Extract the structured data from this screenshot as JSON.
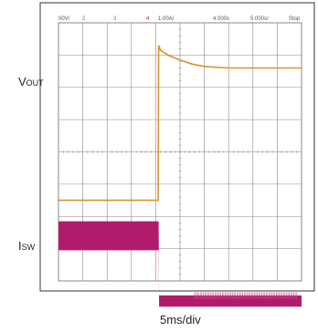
{
  "labels": {
    "vout_main": "V",
    "vout_sub": "OUT",
    "isw_main": "I",
    "isw_sub": "SW",
    "timebase": "5ms/div"
  },
  "scope_header": {
    "ch1_scale": "00V/",
    "ch2_num": "2",
    "ch3_num": "3",
    "ch4_num": "4",
    "ch4_scale": "1.00A/",
    "trigger_time": "4.000s",
    "timebase_setting": "5.000s/",
    "run_state": "Stop"
  },
  "colors": {
    "ch1": "#d9922f",
    "ch2": "#2a9a2a",
    "ch3": "#5b79c8",
    "ch4": "#b01c6b",
    "grid": "#8a8a8a",
    "frame": "#333333"
  },
  "chart_data": {
    "type": "line",
    "xlabel": "5ms/div",
    "x_divisions": 10,
    "y_divisions": 8,
    "series": [
      {
        "name": "VOUT",
        "channel": 1,
        "x_div": [
          0,
          4.1,
          4.12,
          4.2,
          4.5,
          5.0,
          5.5,
          6.0,
          6.5,
          7.0,
          8.0,
          10.0
        ],
        "y_div": [
          2.5,
          2.5,
          7.3,
          7.15,
          7.0,
          6.85,
          6.72,
          6.65,
          6.62,
          6.6,
          6.6,
          6.6
        ]
      },
      {
        "name": "ISW",
        "channel": 4,
        "x_div": [
          0,
          4.12,
          4.14,
          10.0
        ],
        "y_div_top": [
          1.85,
          1.85,
          -0.45,
          -0.45
        ],
        "y_div_bottom": [
          0.95,
          0.95,
          -0.8,
          -0.8
        ]
      }
    ]
  }
}
